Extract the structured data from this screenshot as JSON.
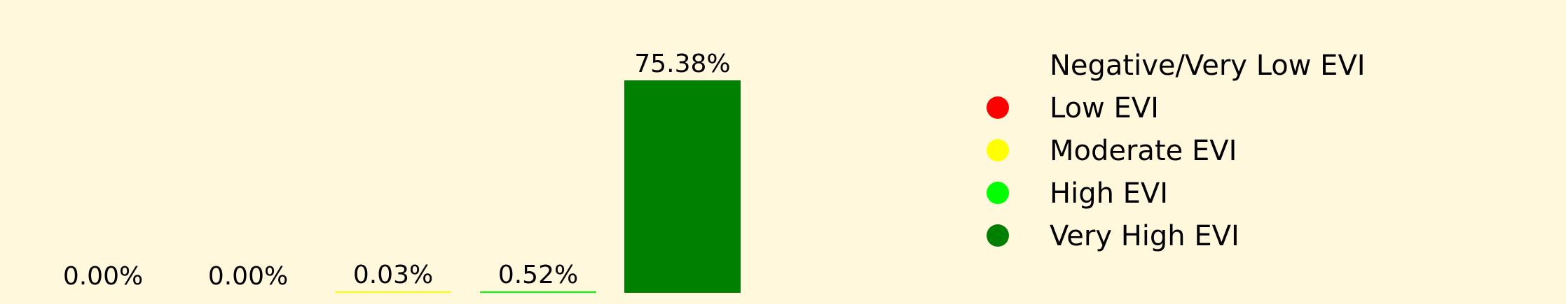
{
  "chart_data": {
    "type": "bar",
    "categories": [
      "Negative/Very Low EVI",
      "Low EVI",
      "Moderate EVI",
      "High EVI",
      "Very High EVI"
    ],
    "values": [
      0.0,
      0.0,
      0.03,
      0.52,
      75.38
    ],
    "labels": [
      "0.00%",
      "0.00%",
      "0.03%",
      "0.52%",
      "75.38%"
    ],
    "colors": [
      "#fff8dc",
      "#ff0000",
      "#ffff00",
      "#00ff00",
      "#008000"
    ],
    "ylim": [
      0,
      75.38
    ],
    "legend_position": "right",
    "grid": false
  }
}
